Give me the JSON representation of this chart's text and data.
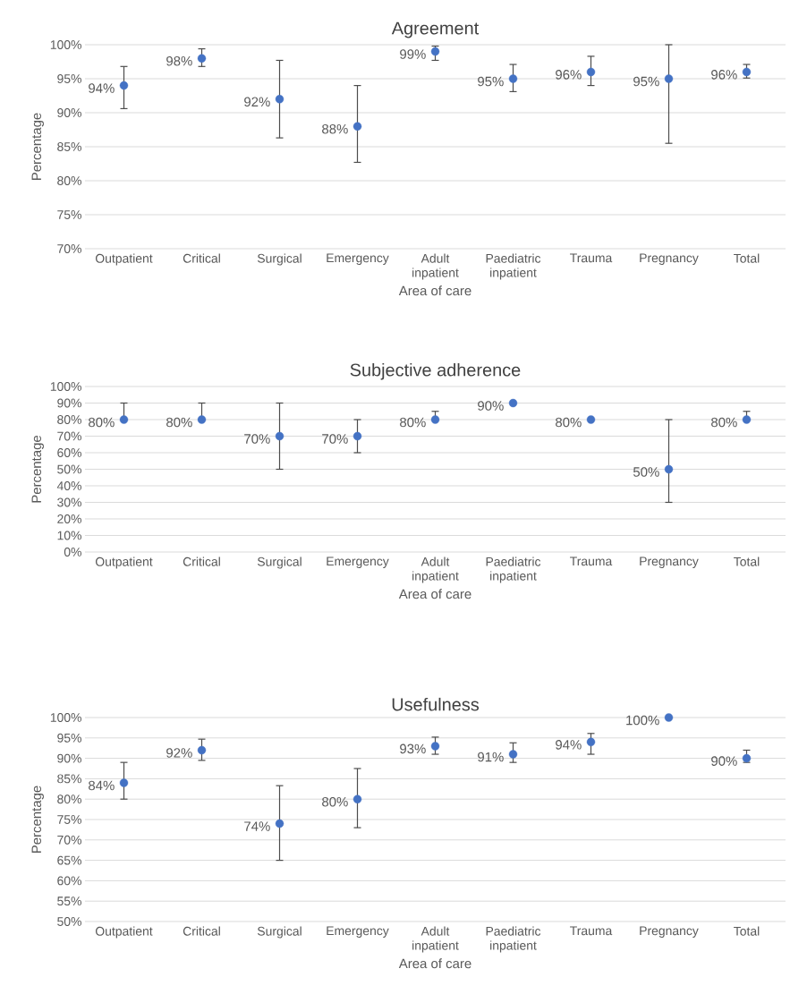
{
  "chart_data": [
    {
      "type": "scatter",
      "title": "Agreement",
      "xlabel": "Area of care",
      "ylabel": "Percentage",
      "categories": [
        "Outpatient",
        "Critical",
        "Surgical",
        "Emergency",
        "Adult inpatient",
        "Paediatric inpatient",
        "Trauma",
        "Pregnancy",
        "Total"
      ],
      "values": [
        94,
        98,
        92,
        88,
        99,
        95,
        96,
        95,
        96
      ],
      "errors": [
        [
          90.6,
          96.8
        ],
        [
          96.8,
          99.4
        ],
        [
          86.3,
          97.7
        ],
        [
          82.7,
          94.0
        ],
        [
          97.7,
          99.8
        ],
        [
          93.1,
          97.1
        ],
        [
          94.0,
          98.3
        ],
        [
          85.5,
          100
        ],
        [
          95.1,
          97.1
        ]
      ],
      "value_labels": [
        "94%",
        "98%",
        "92%",
        "88%",
        "99%",
        "95%",
        "96%",
        "95%",
        "96%"
      ],
      "color": "#4472c4",
      "marker": "circle",
      "grid": "y",
      "ylim": [
        70,
        100
      ],
      "yticks": [
        {
          "value": 70,
          "label": "70%"
        },
        {
          "value": 75,
          "label": "75%"
        },
        {
          "value": 80,
          "label": "80%"
        },
        {
          "value": 85,
          "label": "85%"
        },
        {
          "value": 90,
          "label": "90%"
        },
        {
          "value": 95,
          "label": "95%"
        },
        {
          "value": 100,
          "label": "100%"
        }
      ]
    },
    {
      "type": "scatter",
      "title": "Subjective adherence",
      "xlabel": "Area of care",
      "ylabel": "Percentage",
      "categories": [
        "Outpatient",
        "Critical",
        "Surgical",
        "Emergency",
        "Adult inpatient",
        "Paediatric inpatient",
        "Trauma",
        "Pregnancy",
        "Total"
      ],
      "values": [
        80,
        80,
        70,
        70,
        80,
        90,
        80,
        50,
        80
      ],
      "errors": [
        [
          80,
          90
        ],
        [
          80,
          90
        ],
        [
          50,
          90
        ],
        [
          60,
          80
        ],
        [
          80,
          85
        ],
        null,
        null,
        [
          30,
          80
        ],
        [
          80,
          85
        ]
      ],
      "value_labels": [
        "80%",
        "80%",
        "70%",
        "70%",
        "80%",
        "90%",
        "80%",
        "50%",
        "80%"
      ],
      "color": "#4472c4",
      "marker": "circle",
      "grid": "y",
      "ylim": [
        0,
        100
      ],
      "yticks": [
        {
          "value": 0,
          "label": "0%"
        },
        {
          "value": 10,
          "label": "10%"
        },
        {
          "value": 20,
          "label": "20%"
        },
        {
          "value": 30,
          "label": "30%"
        },
        {
          "value": 40,
          "label": "40%"
        },
        {
          "value": 50,
          "label": "50%"
        },
        {
          "value": 60,
          "label": "60%"
        },
        {
          "value": 70,
          "label": "70%"
        },
        {
          "value": 80,
          "label": "80%"
        },
        {
          "value": 90,
          "label": "90%"
        },
        {
          "value": 100,
          "label": "100%"
        }
      ]
    },
    {
      "type": "scatter",
      "title": "Usefulness",
      "xlabel": "Area of care",
      "ylabel": "Percentage",
      "categories": [
        "Outpatient",
        "Critical",
        "Surgical",
        "Emergency",
        "Adult inpatient",
        "Paediatric inpatient",
        "Trauma",
        "Pregnancy",
        "Total"
      ],
      "values": [
        84,
        92,
        74,
        80,
        93,
        91,
        94,
        100,
        90
      ],
      "errors": [
        [
          80,
          89
        ],
        [
          89.5,
          94.7
        ],
        [
          65,
          83.3
        ],
        [
          73,
          87.5
        ],
        [
          91,
          95.2
        ],
        [
          89,
          93.8
        ],
        [
          91,
          96.1
        ],
        null,
        [
          89,
          92
        ]
      ],
      "value_labels": [
        "84%",
        "92%",
        "74%",
        "80%",
        "93%",
        "91%",
        "94%",
        "100%",
        "90%"
      ],
      "color": "#4472c4",
      "marker": "circle",
      "grid": "y",
      "ylim": [
        50,
        100
      ],
      "yticks": [
        {
          "value": 50,
          "label": "50%"
        },
        {
          "value": 55,
          "label": "55%"
        },
        {
          "value": 60,
          "label": "60%"
        },
        {
          "value": 65,
          "label": "65%"
        },
        {
          "value": 70,
          "label": "70%"
        },
        {
          "value": 75,
          "label": "75%"
        },
        {
          "value": 80,
          "label": "80%"
        },
        {
          "value": 85,
          "label": "85%"
        },
        {
          "value": 90,
          "label": "90%"
        },
        {
          "value": 95,
          "label": "95%"
        },
        {
          "value": 100,
          "label": "100%"
        }
      ]
    }
  ]
}
